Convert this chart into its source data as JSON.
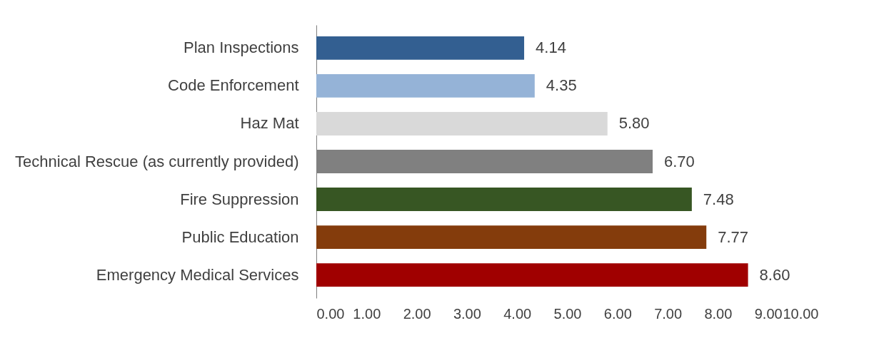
{
  "chart_data": {
    "type": "bar",
    "orientation": "horizontal",
    "categories": [
      "Plan Inspections",
      "Code Enforcement",
      "Haz Mat",
      "Technical Rescue (as currently provided)",
      "Fire Suppression",
      "Public Education",
      "Emergency Medical Services"
    ],
    "values": [
      4.14,
      4.35,
      5.8,
      6.7,
      7.48,
      7.77,
      8.6
    ],
    "colors": [
      "#335f91",
      "#95b3d7",
      "#d9d9d9",
      "#808080",
      "#375623",
      "#843c0c",
      "#a00000"
    ],
    "xlim": [
      0,
      10
    ],
    "xticks": [
      {
        "value": 0,
        "label": "0.00"
      },
      {
        "value": 1,
        "label": "1.00"
      },
      {
        "value": 2,
        "label": "2.00"
      },
      {
        "value": 3,
        "label": "3.00"
      },
      {
        "value": 4,
        "label": "4.00"
      },
      {
        "value": 5,
        "label": "5.00"
      },
      {
        "value": 6,
        "label": "6.00"
      },
      {
        "value": 7,
        "label": "7.00"
      },
      {
        "value": 8,
        "label": "8.00"
      },
      {
        "value": 9,
        "label": "9.00"
      },
      {
        "value": 10,
        "label": "10.00"
      }
    ],
    "value_labels": [
      "4.14",
      "4.35",
      "5.80",
      "6.70",
      "7.48",
      "7.77",
      "8.60"
    ],
    "grid": false
  }
}
